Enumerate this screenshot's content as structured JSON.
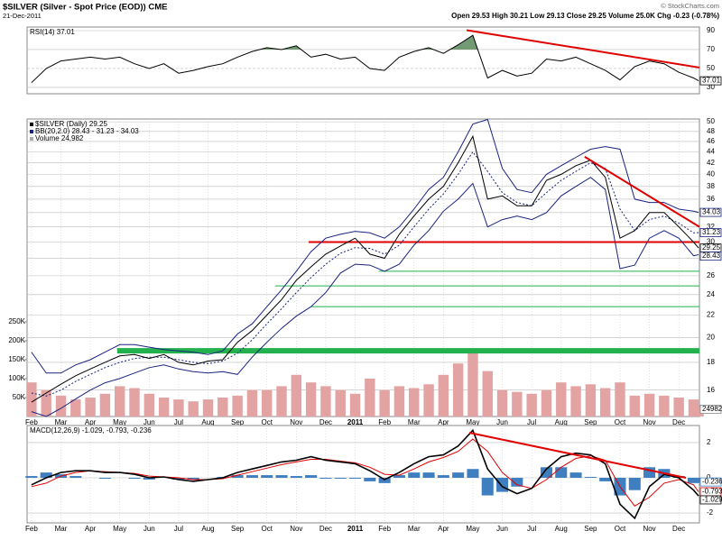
{
  "header": {
    "title": "$SILVER (Silver - Spot Price (EOD)) CME",
    "date": "21-Dec-2011",
    "quote": "Open 29.53 High 30.21 Low 29.13 Close 29.25 Volume 25.0K Chg -0.23 (-0.78%)",
    "credit": "© StockCharts.com"
  },
  "chart_data": [
    {
      "type": "line",
      "title": "RSI(14) 37.01",
      "x": [
        1,
        1.5,
        2,
        2.5,
        3,
        3.5,
        4,
        4.5,
        5,
        5.5,
        6,
        6.5,
        7,
        7.5,
        8,
        8.5,
        9,
        9.5,
        10,
        10.5,
        11,
        11.5,
        12,
        12.5,
        13,
        13.5,
        14,
        14.5,
        15,
        15.5,
        16,
        16.5,
        17,
        17.5,
        18,
        18.5,
        19,
        19.5,
        20,
        20.5,
        21,
        21.5,
        22,
        22.5,
        23,
        23.5,
        23.67
      ],
      "xlim": [
        0.85,
        23.7
      ],
      "ylim": [
        23.3,
        93.8
      ],
      "yticks": [
        30,
        50,
        70,
        90
      ],
      "overbought_color": "#5a8a5a",
      "series": [
        {
          "color": "#000000",
          "values": [
            35,
            50,
            58,
            60,
            62,
            60,
            62,
            55,
            50,
            55,
            45,
            48,
            52,
            55,
            62,
            68,
            72,
            70,
            74,
            62,
            65,
            60,
            62,
            50,
            48,
            62,
            68,
            72,
            66,
            75,
            85,
            40,
            48,
            42,
            45,
            60,
            58,
            62,
            55,
            48,
            38,
            52,
            58,
            55,
            46,
            40,
            37.01
          ]
        }
      ],
      "trendlines": [
        {
          "x": [
            15.79,
            23.7
          ],
          "y": [
            90.5,
            51
          ],
          "color": "#e00000"
        }
      ]
    },
    {
      "type": "line",
      "log_scale": true,
      "legend": [
        "$SILVER (Daily) 29.25",
        "BB(20,2.0) 28.43 - 31.23 - 34.03",
        "Volume 24,982"
      ],
      "x": [
        1,
        1.5,
        2,
        2.5,
        3,
        3.5,
        4,
        4.5,
        5,
        5.5,
        6,
        6.5,
        7,
        7.5,
        8,
        8.5,
        9,
        9.5,
        10,
        10.5,
        11,
        11.5,
        12,
        12.5,
        13,
        13.5,
        14,
        14.5,
        15,
        15.5,
        16,
        16.5,
        17,
        17.5,
        18,
        18.5,
        19,
        19.5,
        20,
        20.5,
        21,
        21.5,
        22,
        22.5,
        23,
        23.5,
        23.67
      ],
      "xlim": [
        0.85,
        23.7
      ],
      "xticks": [
        {
          "value": 1,
          "label": "Feb"
        },
        {
          "value": 2,
          "label": "Mar"
        },
        {
          "value": 3,
          "label": "Apr"
        },
        {
          "value": 4,
          "label": "May"
        },
        {
          "value": 5,
          "label": "Jun"
        },
        {
          "value": 6,
          "label": "Jul"
        },
        {
          "value": 7,
          "label": "Aug"
        },
        {
          "value": 8,
          "label": "Sep"
        },
        {
          "value": 9,
          "label": "Oct"
        },
        {
          "value": 10,
          "label": "Nov"
        },
        {
          "value": 11,
          "label": "Dec"
        },
        {
          "value": 12,
          "label": "2011"
        },
        {
          "value": 13,
          "label": "Feb"
        },
        {
          "value": 14,
          "label": "Mar"
        },
        {
          "value": 15,
          "label": "Apr"
        },
        {
          "value": 16,
          "label": "May"
        },
        {
          "value": 17,
          "label": "Jun"
        },
        {
          "value": 18,
          "label": "Jul"
        },
        {
          "value": 19,
          "label": "Aug"
        },
        {
          "value": 20,
          "label": "Sep"
        },
        {
          "value": 21,
          "label": "Oct"
        },
        {
          "value": 22,
          "label": "Nov"
        },
        {
          "value": 23,
          "label": "Dec"
        }
      ],
      "ylim": [
        14.3,
        50.6
      ],
      "yticks": [
        16,
        18,
        20,
        22,
        24,
        26,
        28,
        30,
        32,
        34,
        36,
        38,
        40,
        42,
        44,
        46,
        48,
        50
      ],
      "series": [
        {
          "color": "#1a237e",
          "values": [
            18.8,
            17.2,
            17.2,
            17.8,
            18.2,
            18.8,
            19.4,
            19.4,
            19.2,
            19.0,
            18.9,
            18.8,
            18.6,
            18.9,
            20.3,
            21.2,
            22.8,
            24.5,
            26.5,
            28.8,
            30.5,
            31.0,
            31.4,
            31.2,
            30.5,
            32.0,
            34.5,
            37.5,
            39.5,
            44.0,
            49.5,
            50.5,
            41.0,
            37.5,
            37.0,
            40.0,
            41.5,
            43.0,
            44.5,
            45.0,
            44.5,
            36.0,
            35.5,
            35.5,
            34.5,
            34.2,
            34.03
          ]
        },
        {
          "color": "#1a237e",
          "dash": true,
          "values": [
            15.8,
            15.6,
            16.0,
            16.6,
            17.1,
            17.6,
            18.0,
            18.3,
            18.4,
            18.4,
            18.2,
            18.0,
            17.9,
            18.1,
            18.7,
            19.8,
            21.2,
            22.6,
            24.2,
            25.8,
            27.3,
            28.6,
            29.3,
            29.2,
            28.5,
            29.6,
            32.0,
            34.5,
            36.8,
            40.0,
            44.0,
            40.5,
            37.0,
            35.5,
            35.0,
            37.0,
            39.0,
            40.5,
            42.0,
            41.0,
            34.5,
            31.5,
            33.0,
            33.5,
            32.5,
            31.2,
            31.23
          ]
        },
        {
          "color": "#000000",
          "values": [
            15.2,
            15.8,
            16.4,
            17.0,
            17.5,
            18.0,
            18.5,
            18.6,
            18.3,
            18.6,
            18.0,
            17.8,
            18.1,
            18.2,
            19.6,
            20.6,
            22.0,
            23.5,
            25.5,
            27.0,
            28.5,
            29.5,
            30.5,
            28.5,
            28.0,
            31.0,
            33.5,
            36.0,
            38.0,
            42.0,
            47.0,
            36.0,
            36.5,
            35.0,
            35.0,
            39.0,
            40.0,
            41.5,
            42.5,
            39.5,
            30.5,
            31.5,
            34.0,
            34.0,
            32.0,
            30.0,
            29.25
          ]
        },
        {
          "color": "#1a237e",
          "values": [
            14.6,
            14.3,
            14.8,
            15.4,
            16.0,
            16.5,
            16.8,
            17.2,
            17.6,
            17.8,
            17.5,
            17.3,
            17.2,
            17.3,
            17.1,
            18.4,
            19.6,
            20.8,
            21.9,
            22.8,
            24.2,
            26.3,
            27.3,
            27.2,
            26.5,
            27.3,
            29.6,
            31.5,
            34.2,
            36.0,
            38.5,
            32.0,
            33.0,
            33.5,
            33.0,
            34.0,
            36.5,
            38.0,
            39.5,
            37.5,
            26.8,
            27.2,
            30.5,
            31.5,
            30.5,
            28.3,
            28.43
          ]
        }
      ],
      "volume": {
        "color": "#e3a3a3",
        "ylim": [
          0,
          250000
        ],
        "yticks": [
          {
            "value": 50000,
            "label": "50K"
          },
          {
            "value": 100000,
            "label": "100K"
          },
          {
            "value": 150000,
            "label": "150K"
          },
          {
            "value": 200000,
            "label": "200K"
          },
          {
            "value": 250000,
            "label": "250K"
          }
        ],
        "values": [
          90000,
          70000,
          55000,
          45000,
          50000,
          60000,
          80000,
          75000,
          60000,
          50000,
          45000,
          40000,
          45000,
          50000,
          55000,
          70000,
          70000,
          80000,
          110000,
          90000,
          80000,
          70000,
          60000,
          100000,
          70000,
          80000,
          75000,
          85000,
          110000,
          140000,
          180000,
          120000,
          70000,
          65000,
          60000,
          70000,
          90000,
          80000,
          85000,
          75000,
          90000,
          55000,
          60000,
          55000,
          50000,
          45000,
          24982
        ]
      },
      "levels": [
        {
          "value": 30,
          "x": [
            10.42,
            23.7
          ],
          "color": "#e00000",
          "width": 2
        },
        {
          "value": 26.5,
          "x": [
            12.8,
            23.7
          ],
          "color": "#22b14c",
          "width": 1
        },
        {
          "value": 24.9,
          "x": [
            9.28,
            23.7
          ],
          "color": "#22b14c",
          "width": 1
        },
        {
          "value": 22.8,
          "x": [
            10.5,
            23.7
          ],
          "color": "#22b14c",
          "width": 1
        },
        {
          "value": 18.9,
          "x": [
            3.91,
            23.7
          ],
          "color": "#22b14c",
          "width": 6
        }
      ],
      "trendlines": [
        {
          "x": [
            19.8,
            23.7
          ],
          "y": [
            43.1,
            32.0
          ],
          "color": "#e00000"
        }
      ]
    },
    {
      "type": "line",
      "title": "MACD(12,26,9) -1.029, -0.793, -0.236",
      "x": [
        1,
        1.5,
        2,
        2.5,
        3,
        3.5,
        4,
        4.5,
        5,
        5.5,
        6,
        6.5,
        7,
        7.5,
        8,
        8.5,
        9,
        9.5,
        10,
        10.5,
        11,
        11.5,
        12,
        12.5,
        13,
        13.5,
        14,
        14.5,
        15,
        15.5,
        16,
        16.5,
        17,
        17.5,
        18,
        18.5,
        19,
        19.5,
        20,
        20.5,
        21,
        21.5,
        22,
        22.5,
        23,
        23.5,
        23.67
      ],
      "xlim": [
        0.85,
        23.7
      ],
      "xticks": [
        {
          "value": 1,
          "label": "Feb"
        },
        {
          "value": 2,
          "label": "Mar"
        },
        {
          "value": 3,
          "label": "Apr"
        },
        {
          "value": 4,
          "label": "May"
        },
        {
          "value": 5,
          "label": "Jun"
        },
        {
          "value": 6,
          "label": "Jul"
        },
        {
          "value": 7,
          "label": "Aug"
        },
        {
          "value": 8,
          "label": "Sep"
        },
        {
          "value": 9,
          "label": "Oct"
        },
        {
          "value": 10,
          "label": "Nov"
        },
        {
          "value": 11,
          "label": "Dec"
        },
        {
          "value": 12,
          "label": "2011"
        },
        {
          "value": 13,
          "label": "Feb"
        },
        {
          "value": 14,
          "label": "Mar"
        },
        {
          "value": 15,
          "label": "Apr"
        },
        {
          "value": 16,
          "label": "May"
        },
        {
          "value": 17,
          "label": "Jun"
        },
        {
          "value": 18,
          "label": "Jul"
        },
        {
          "value": 19,
          "label": "Aug"
        },
        {
          "value": 20,
          "label": "Sep"
        },
        {
          "value": 21,
          "label": "Oct"
        },
        {
          "value": 22,
          "label": "Nov"
        },
        {
          "value": 23,
          "label": "Dec"
        }
      ],
      "ylim": [
        -2.56,
        2.97
      ],
      "yticks": [
        -2,
        0,
        2
      ],
      "series": [
        {
          "style": "bar",
          "color": "#3f7fbf",
          "values": [
            0.1,
            0.3,
            0.2,
            0.1,
            0.0,
            -0.05,
            0.0,
            -0.05,
            -0.1,
            0.0,
            -0.1,
            -0.1,
            0.0,
            0.05,
            0.15,
            0.15,
            0.15,
            0.15,
            0.1,
            0.15,
            -0.05,
            -0.05,
            -0.05,
            -0.2,
            -0.3,
            0.15,
            0.3,
            0.3,
            0.15,
            0.3,
            0.5,
            -1.0,
            -0.8,
            -0.5,
            0.0,
            0.6,
            0.6,
            0.3,
            0.05,
            -0.2,
            -1.0,
            -0.7,
            0.6,
            0.5,
            0.1,
            -0.3,
            -0.236
          ]
        },
        {
          "color": "#e00000",
          "values": [
            -0.5,
            -0.3,
            0.1,
            0.3,
            0.4,
            0.35,
            0.3,
            0.25,
            0.1,
            0.05,
            0.0,
            -0.1,
            -0.1,
            -0.05,
            0.15,
            0.35,
            0.55,
            0.75,
            0.9,
            1.05,
            1.05,
            0.95,
            0.85,
            0.6,
            0.2,
            0.15,
            0.5,
            0.9,
            1.15,
            1.5,
            2.2,
            1.5,
            0.3,
            -0.4,
            -0.6,
            -0.1,
            0.6,
            1.1,
            1.25,
            1.0,
            -0.5,
            -1.6,
            -1.1,
            -0.3,
            -0.1,
            -0.4,
            -0.793
          ]
        },
        {
          "color": "#000000",
          "width": 1.6,
          "values": [
            -0.4,
            0.0,
            0.3,
            0.4,
            0.4,
            0.3,
            0.3,
            0.2,
            0.0,
            0.05,
            -0.1,
            -0.2,
            -0.1,
            0.0,
            0.3,
            0.5,
            0.7,
            0.9,
            1.0,
            1.2,
            1.0,
            0.9,
            0.8,
            0.4,
            -0.1,
            0.3,
            0.8,
            1.2,
            1.3,
            1.8,
            2.7,
            0.5,
            -0.5,
            -0.9,
            -0.6,
            0.5,
            1.2,
            1.4,
            1.3,
            0.8,
            -1.5,
            -2.3,
            -0.5,
            0.2,
            0.0,
            -0.7,
            -1.029
          ]
        }
      ],
      "trendlines": [
        {
          "x": [
            15.88,
            23.24
          ],
          "y": [
            2.56,
            0.0
          ],
          "color": "#e00000"
        }
      ]
    }
  ]
}
